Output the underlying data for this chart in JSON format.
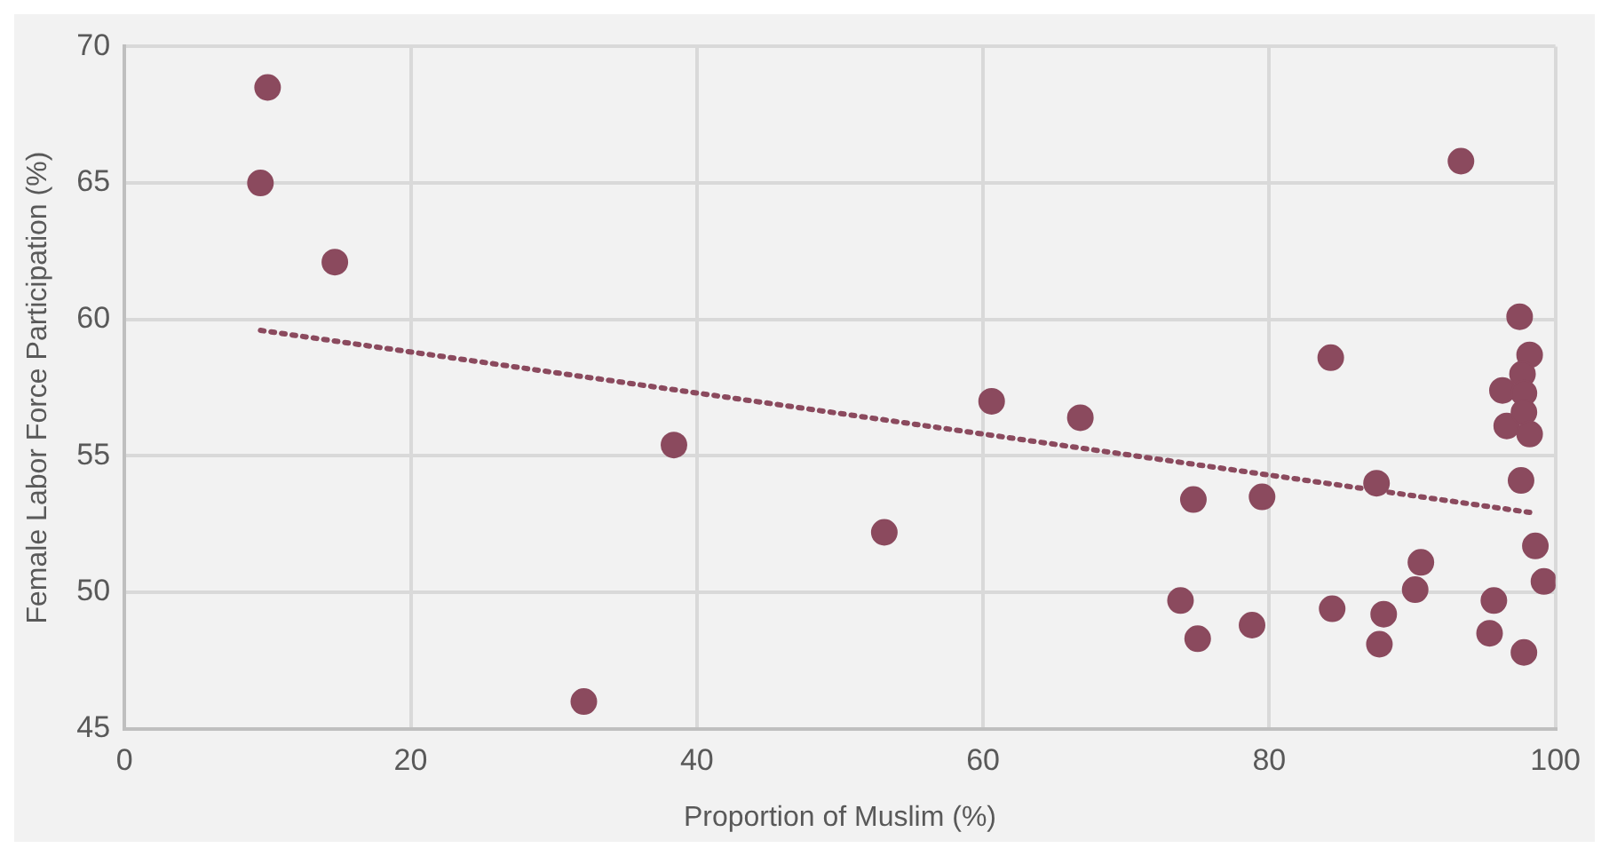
{
  "chart_data": {
    "type": "scatter",
    "xlabel": "Proportion of Muslim (%)",
    "ylabel": "Female Labor Force Participation (%)",
    "xlim": [
      0,
      100
    ],
    "xticks": [
      0,
      20,
      40,
      60,
      80,
      100
    ],
    "ylim": [
      45,
      70
    ],
    "yticks": [
      45,
      50,
      55,
      60,
      65,
      70
    ],
    "grid": true,
    "legend": false,
    "marker": "circle",
    "series": [
      {
        "color": "#8b4a5e",
        "x": [
          10.0,
          9.5,
          14.7,
          38.4,
          53.1,
          60.6,
          66.8,
          32.1,
          73.8,
          74.7,
          75.0,
          78.8,
          79.5,
          84.3,
          84.4,
          87.5,
          87.7,
          88.0,
          90.2,
          90.6,
          93.4,
          95.4,
          95.7,
          96.3,
          96.6,
          97.5,
          97.6,
          97.8,
          98.2,
          97.7,
          97.8,
          97.8,
          98.2,
          98.6,
          99.2
        ],
        "values": [
          68.5,
          65.0,
          62.1,
          55.4,
          52.2,
          57.0,
          56.4,
          46.0,
          49.7,
          53.4,
          48.3,
          48.8,
          53.5,
          58.6,
          49.4,
          54.0,
          48.1,
          49.2,
          50.1,
          51.1,
          65.8,
          48.5,
          49.7,
          57.4,
          56.1,
          60.1,
          54.1,
          47.8,
          58.7,
          58.0,
          57.3,
          56.6,
          55.8,
          51.7,
          50.4
        ]
      },
      {
        "type": "line",
        "color": "#8b4a5e",
        "line_style": "dotted",
        "marker": "none",
        "x": [
          9.5,
          98.6
        ],
        "values": [
          59.6,
          52.9
        ]
      }
    ]
  }
}
